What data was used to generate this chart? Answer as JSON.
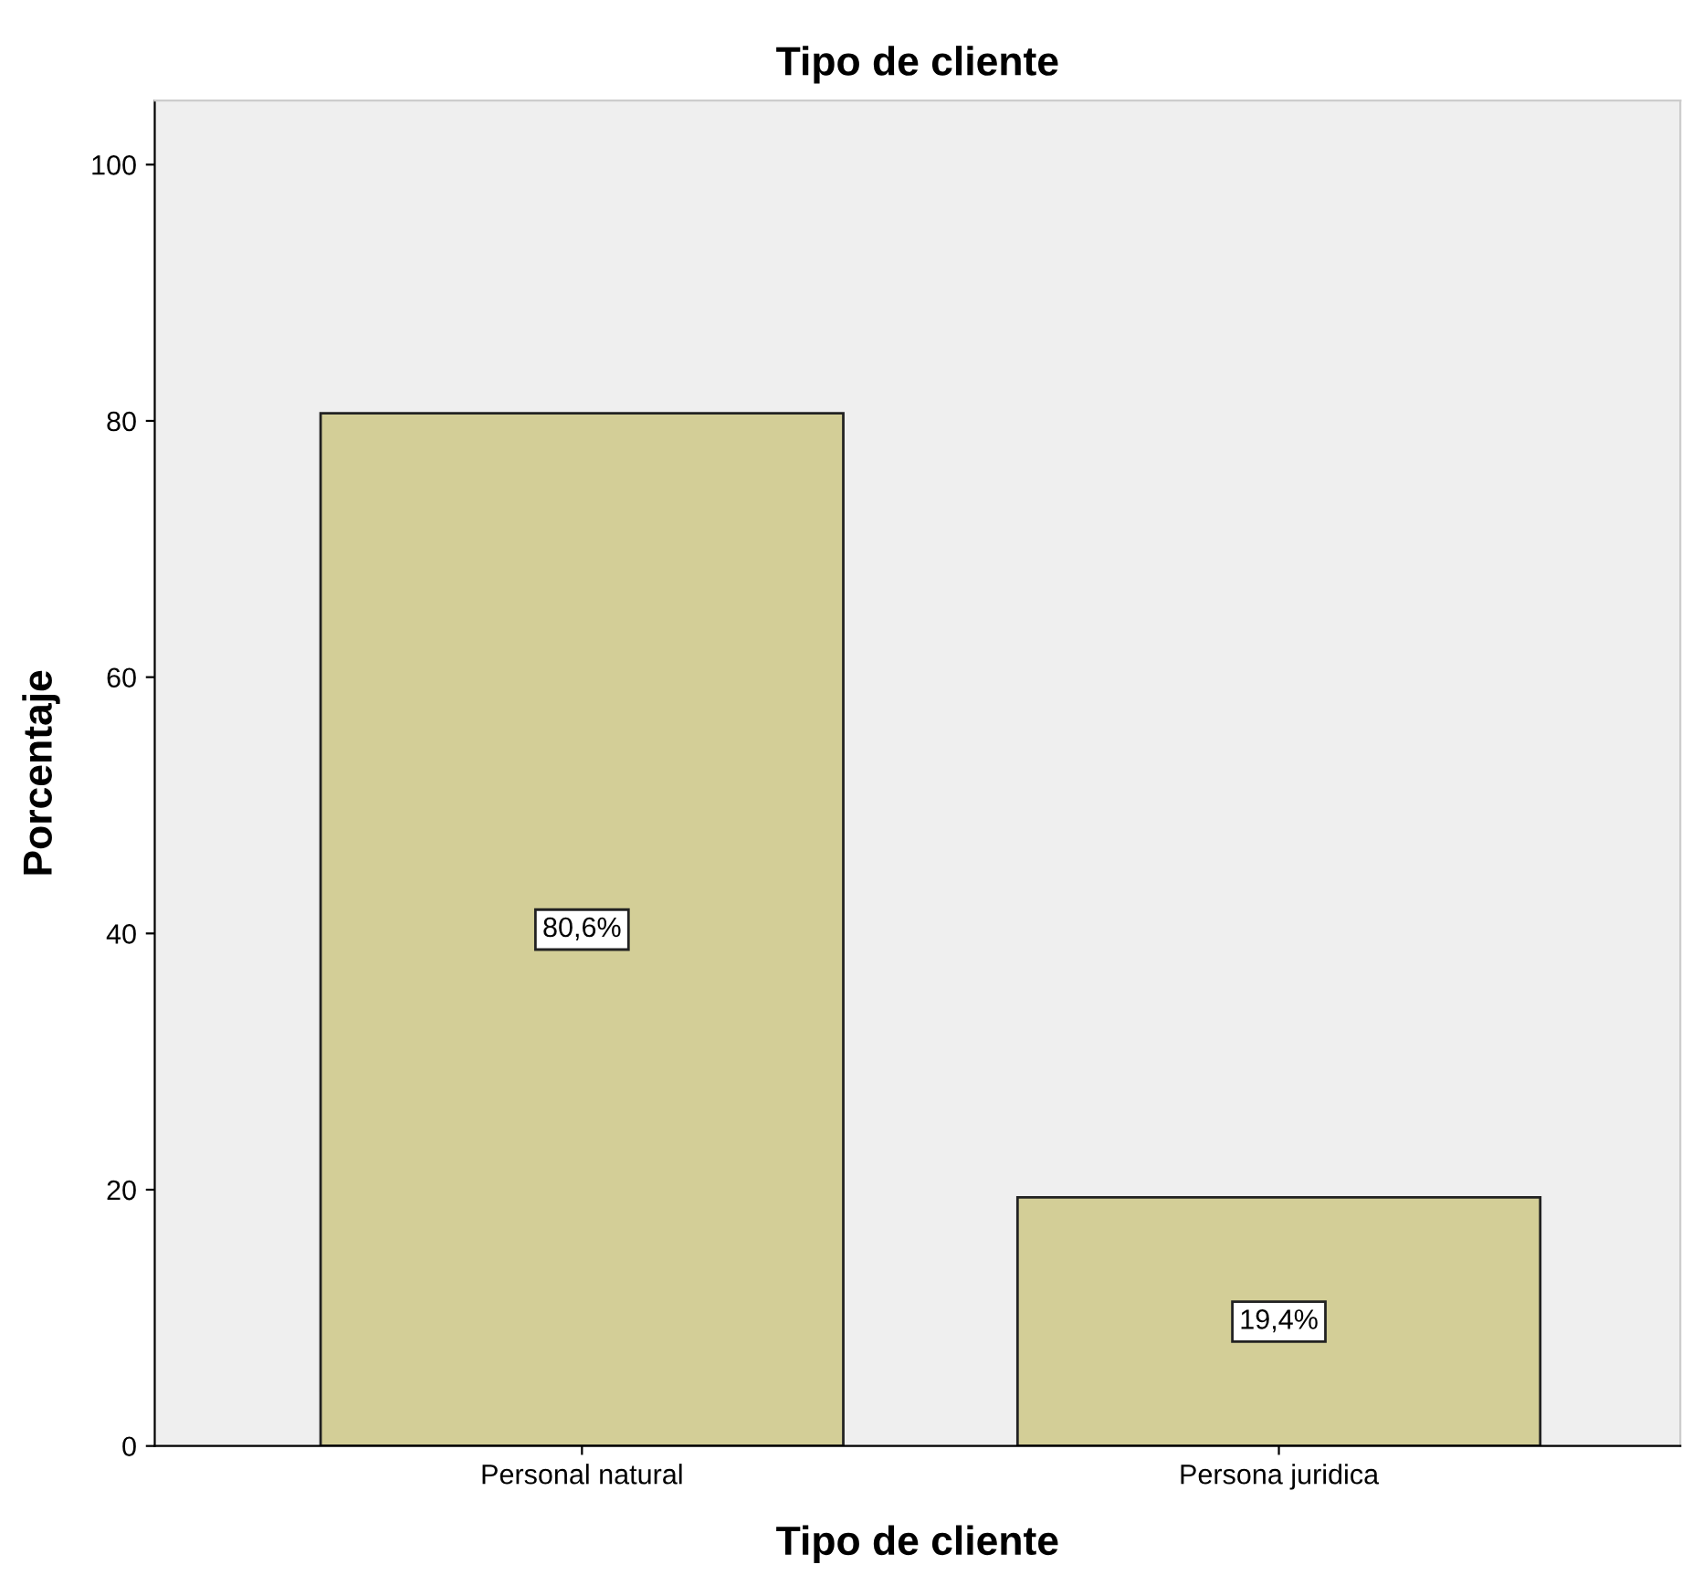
{
  "chart_data": {
    "type": "bar",
    "title": "Tipo de cliente",
    "xlabel": "Tipo de cliente",
    "ylabel": "Porcentaje",
    "categories": [
      "Personal natural",
      "Persona juridica"
    ],
    "values": [
      80.6,
      19.4
    ],
    "value_labels": [
      "80,6%",
      "19,4%"
    ],
    "color": "#d3ce97",
    "ylim": [
      0,
      105
    ],
    "yticks": [
      0,
      20,
      40,
      60,
      80,
      100
    ],
    "grid": false,
    "legend": false
  }
}
